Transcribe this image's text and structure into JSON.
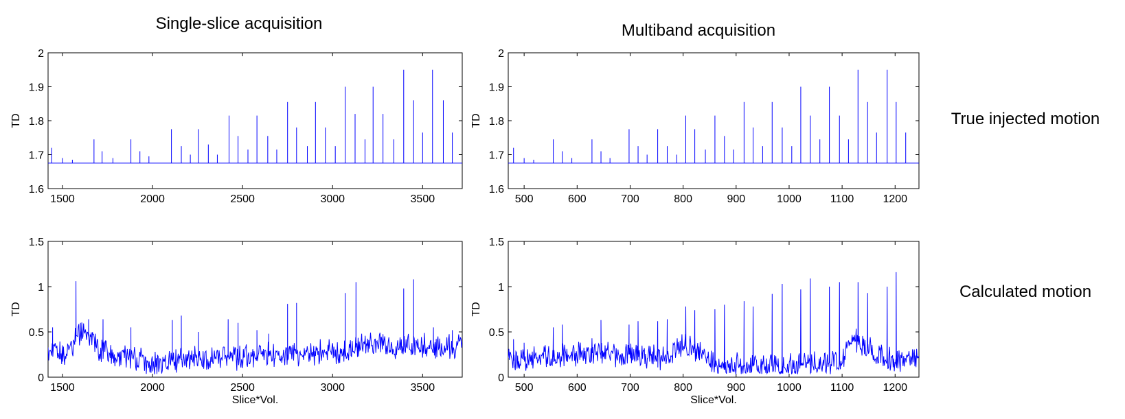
{
  "figure": {
    "col_titles": [
      "Single-slice acquisition",
      "Multiband acquisition"
    ],
    "row_labels": [
      "True injected motion",
      "Calculated motion"
    ],
    "series_color": "#0000ff"
  },
  "chart_data": [
    {
      "id": "single-true",
      "type": "line",
      "title": "Single-slice acquisition",
      "xlabel": "",
      "ylabel": "TD",
      "xlim": [
        1420,
        3720
      ],
      "ylim": [
        1.6,
        2.0
      ],
      "xticks": [
        1500,
        2000,
        2500,
        3000,
        3500
      ],
      "yticks": [
        1.6,
        1.7,
        1.8,
        1.9,
        2.0
      ],
      "ytick_labels": [
        "1.6",
        "1.7",
        "1.8",
        "1.9",
        "2"
      ],
      "series": [
        {
          "baseline": 1.675,
          "spikes": [
            [
              1440,
              1.72
            ],
            [
              1500,
              1.69
            ],
            [
              1555,
              1.685
            ],
            [
              1675,
              1.745
            ],
            [
              1720,
              1.71
            ],
            [
              1780,
              1.69
            ],
            [
              1880,
              1.745
            ],
            [
              1930,
              1.71
            ],
            [
              1980,
              1.695
            ],
            [
              2105,
              1.775
            ],
            [
              2160,
              1.725
            ],
            [
              2210,
              1.7
            ],
            [
              2255,
              1.775
            ],
            [
              2310,
              1.73
            ],
            [
              2360,
              1.7
            ],
            [
              2425,
              1.815
            ],
            [
              2475,
              1.755
            ],
            [
              2530,
              1.715
            ],
            [
              2580,
              1.815
            ],
            [
              2640,
              1.755
            ],
            [
              2690,
              1.715
            ],
            [
              2750,
              1.855
            ],
            [
              2800,
              1.78
            ],
            [
              2860,
              1.725
            ],
            [
              2905,
              1.855
            ],
            [
              2960,
              1.78
            ],
            [
              3015,
              1.725
            ],
            [
              3070,
              1.9
            ],
            [
              3125,
              1.82
            ],
            [
              3180,
              1.745
            ],
            [
              3225,
              1.9
            ],
            [
              3280,
              1.82
            ],
            [
              3340,
              1.745
            ],
            [
              3395,
              1.95
            ],
            [
              3450,
              1.86
            ],
            [
              3500,
              1.765
            ],
            [
              3555,
              1.95
            ],
            [
              3615,
              1.86
            ],
            [
              3665,
              1.765
            ]
          ]
        }
      ]
    },
    {
      "id": "multi-true",
      "type": "line",
      "title": "Multiband acquisition",
      "xlabel": "",
      "ylabel": "TD",
      "xlim": [
        470,
        1245
      ],
      "ylim": [
        1.6,
        2.0
      ],
      "xticks": [
        500,
        600,
        700,
        800,
        900,
        1000,
        1100,
        1200
      ],
      "yticks": [
        1.6,
        1.7,
        1.8,
        1.9,
        2.0
      ],
      "ytick_labels": [
        "1.6",
        "1.7",
        "1.8",
        "1.9",
        "2"
      ],
      "series": [
        {
          "baseline": 1.675,
          "spikes": [
            [
              480,
              1.72
            ],
            [
              500,
              1.69
            ],
            [
              518,
              1.685
            ],
            [
              555,
              1.745
            ],
            [
              572,
              1.71
            ],
            [
              590,
              1.69
            ],
            [
              628,
              1.745
            ],
            [
              645,
              1.71
            ],
            [
              662,
              1.69
            ],
            [
              698,
              1.775
            ],
            [
              715,
              1.725
            ],
            [
              732,
              1.7
            ],
            [
              752,
              1.775
            ],
            [
              770,
              1.725
            ],
            [
              788,
              1.7
            ],
            [
              805,
              1.815
            ],
            [
              822,
              1.775
            ],
            [
              842,
              1.715
            ],
            [
              860,
              1.815
            ],
            [
              878,
              1.755
            ],
            [
              895,
              1.715
            ],
            [
              915,
              1.855
            ],
            [
              932,
              1.78
            ],
            [
              950,
              1.725
            ],
            [
              968,
              1.855
            ],
            [
              987,
              1.78
            ],
            [
              1005,
              1.725
            ],
            [
              1022,
              1.9
            ],
            [
              1040,
              1.815
            ],
            [
              1058,
              1.745
            ],
            [
              1076,
              1.9
            ],
            [
              1095,
              1.815
            ],
            [
              1112,
              1.745
            ],
            [
              1130,
              1.95
            ],
            [
              1148,
              1.855
            ],
            [
              1165,
              1.765
            ],
            [
              1185,
              1.95
            ],
            [
              1202,
              1.855
            ],
            [
              1220,
              1.765
            ]
          ]
        }
      ]
    },
    {
      "id": "single-calc",
      "type": "line",
      "title": "",
      "xlabel": "Slice*Vol.",
      "ylabel": "TD",
      "xlim": [
        1420,
        3720
      ],
      "ylim": [
        0,
        1.5
      ],
      "xticks": [
        1500,
        2000,
        2500,
        3000,
        3500
      ],
      "yticks": [
        0,
        0.5,
        1,
        1.5
      ],
      "ytick_labels": [
        "0",
        "0.5",
        "1",
        "1.5"
      ],
      "series": [
        {
          "noise_points": 700,
          "anchors": [
            [
              1420,
              0.3
            ],
            [
              1500,
              0.25
            ],
            [
              1550,
              0.35
            ],
            [
              1580,
              0.48
            ],
            [
              1620,
              0.5
            ],
            [
              1660,
              0.42
            ],
            [
              1700,
              0.3
            ],
            [
              1800,
              0.24
            ],
            [
              1900,
              0.2
            ],
            [
              2000,
              0.15
            ],
            [
              2100,
              0.18
            ],
            [
              2300,
              0.22
            ],
            [
              2500,
              0.23
            ],
            [
              2700,
              0.25
            ],
            [
              2900,
              0.27
            ],
            [
              3000,
              0.28
            ],
            [
              3100,
              0.32
            ],
            [
              3200,
              0.35
            ],
            [
              3300,
              0.35
            ],
            [
              3400,
              0.33
            ],
            [
              3550,
              0.35
            ],
            [
              3720,
              0.35
            ]
          ],
          "spikes": [
            [
              1445,
              0.55
            ],
            [
              1575,
              1.06
            ],
            [
              1600,
              0.6
            ],
            [
              1645,
              0.64
            ],
            [
              1725,
              0.64
            ],
            [
              1880,
              0.55
            ],
            [
              2110,
              0.63
            ],
            [
              2160,
              0.68
            ],
            [
              2255,
              0.5
            ],
            [
              2420,
              0.64
            ],
            [
              2475,
              0.6
            ],
            [
              2580,
              0.52
            ],
            [
              2645,
              0.48
            ],
            [
              2750,
              0.81
            ],
            [
              2800,
              0.82
            ],
            [
              3070,
              0.93
            ],
            [
              3130,
              1.05
            ],
            [
              3395,
              0.98
            ],
            [
              3450,
              1.08
            ],
            [
              3560,
              0.55
            ],
            [
              3665,
              0.52
            ]
          ]
        }
      ]
    },
    {
      "id": "multi-calc",
      "type": "line",
      "title": "",
      "xlabel": "Slice*Vol.",
      "ylabel": "TD",
      "xlim": [
        470,
        1245
      ],
      "ylim": [
        0,
        1.5
      ],
      "xticks": [
        500,
        600,
        700,
        800,
        900,
        1000,
        1100,
        1200
      ],
      "yticks": [
        0,
        0.5,
        1,
        1.5
      ],
      "ytick_labels": [
        "0",
        "0.5",
        "1",
        "1.5"
      ],
      "series": [
        {
          "noise_points": 700,
          "anchors": [
            [
              470,
              0.18
            ],
            [
              520,
              0.2
            ],
            [
              600,
              0.26
            ],
            [
              650,
              0.27
            ],
            [
              700,
              0.25
            ],
            [
              760,
              0.22
            ],
            [
              800,
              0.35
            ],
            [
              830,
              0.3
            ],
            [
              860,
              0.15
            ],
            [
              900,
              0.12
            ],
            [
              950,
              0.12
            ],
            [
              1000,
              0.12
            ],
            [
              1050,
              0.14
            ],
            [
              1100,
              0.18
            ],
            [
              1120,
              0.45
            ],
            [
              1140,
              0.35
            ],
            [
              1170,
              0.24
            ],
            [
              1200,
              0.2
            ],
            [
              1245,
              0.18
            ]
          ],
          "spikes": [
            [
              480,
              0.42
            ],
            [
              500,
              0.38
            ],
            [
              555,
              0.55
            ],
            [
              572,
              0.58
            ],
            [
              628,
              0.43
            ],
            [
              645,
              0.63
            ],
            [
              698,
              0.58
            ],
            [
              715,
              0.62
            ],
            [
              752,
              0.62
            ],
            [
              770,
              0.64
            ],
            [
              805,
              0.78
            ],
            [
              822,
              0.74
            ],
            [
              860,
              0.75
            ],
            [
              878,
              0.8
            ],
            [
              915,
              0.84
            ],
            [
              932,
              0.78
            ],
            [
              968,
              0.92
            ],
            [
              987,
              1.03
            ],
            [
              1022,
              0.97
            ],
            [
              1040,
              1.09
            ],
            [
              1076,
              1.0
            ],
            [
              1095,
              1.05
            ],
            [
              1130,
              1.05
            ],
            [
              1148,
              0.93
            ],
            [
              1185,
              1.0
            ],
            [
              1202,
              1.16
            ]
          ]
        }
      ]
    }
  ]
}
